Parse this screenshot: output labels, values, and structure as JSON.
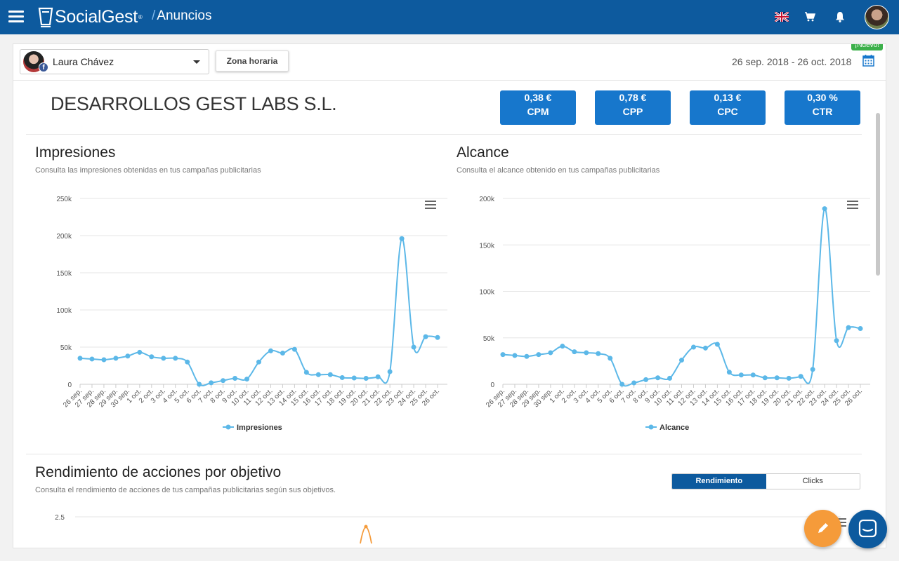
{
  "header": {
    "brand": "SocialGest",
    "brand_reg": "®",
    "breadcrumb": "Anuncios",
    "breadcrumb_sep": "/"
  },
  "toolbar": {
    "account_name": "Laura Chávez",
    "fb_badge": "f",
    "timezone_label": "Zona horaria",
    "new_badge": "¡Nuevo!",
    "date_range": "26 sep. 2018 - 26 oct. 2018"
  },
  "company": "DESARROLLOS GEST LABS S.L.",
  "metrics": [
    {
      "value": "0,38 €",
      "label": "CPM"
    },
    {
      "value": "0,78 €",
      "label": "CPP"
    },
    {
      "value": "0,13 €",
      "label": "CPC"
    },
    {
      "value": "0,30 %",
      "label": "CTR"
    }
  ],
  "sections": {
    "impresiones": {
      "title": "Impresiones",
      "subtitle": "Consulta las impresiones obtenidas en tus campañas publicitarias"
    },
    "alcance": {
      "title": "Alcance",
      "subtitle": "Consulta el alcance obtenido en tus campañas publicitarias"
    },
    "rendimiento": {
      "title": "Rendimiento de acciones por objetivo",
      "subtitle": "Consulta el rendimiento de acciones de tus campañas publicitarias según sus objetivos.",
      "tabs": [
        "Rendimiento",
        "Clicks"
      ]
    }
  },
  "colors": {
    "primary": "#0d5a9e",
    "metric": "#1777cc",
    "series": "#5cb8e8",
    "new": "#3cb04a",
    "fab": "#f59b3a"
  },
  "chart_data": [
    {
      "type": "line",
      "categories": [
        "26 sep.",
        "27 sep.",
        "28 sep.",
        "29 sep.",
        "30 sep.",
        "1 oct.",
        "2 oct.",
        "3 oct.",
        "4 oct.",
        "5 oct.",
        "6 oct.",
        "7 oct.",
        "8 oct.",
        "9 oct.",
        "10 oct.",
        "11 oct.",
        "12 oct.",
        "13 oct.",
        "14 oct.",
        "15 oct.",
        "16 oct.",
        "17 oct.",
        "18 oct.",
        "19 oct.",
        "20 oct.",
        "21 oct.",
        "22 oct.",
        "23 oct.",
        "24 oct.",
        "25 oct.",
        "26 oct."
      ],
      "series": [
        {
          "name": "Impresiones",
          "values": [
            35000,
            34000,
            33000,
            35000,
            38000,
            43000,
            37000,
            35000,
            35000,
            30000,
            0,
            2000,
            5000,
            8000,
            7000,
            30000,
            45000,
            42000,
            47000,
            16000,
            13000,
            13000,
            9000,
            8500,
            8000,
            10000,
            17000,
            196000,
            50000,
            64000,
            63000
          ]
        }
      ],
      "yticks": [
        "0",
        "50k",
        "100k",
        "150k",
        "200k",
        "250k"
      ],
      "ylim": [
        0,
        250000
      ]
    },
    {
      "type": "line",
      "categories": [
        "26 sep.",
        "27 sep.",
        "28 sep.",
        "29 sep.",
        "30 sep.",
        "1 oct.",
        "2 oct.",
        "3 oct.",
        "4 oct.",
        "5 oct.",
        "6 oct.",
        "7 oct.",
        "8 oct.",
        "9 oct.",
        "10 oct.",
        "11 oct.",
        "12 oct.",
        "13 oct.",
        "14 oct.",
        "15 oct.",
        "16 oct.",
        "17 oct.",
        "18 oct.",
        "19 oct.",
        "20 oct.",
        "21 oct.",
        "22 oct.",
        "23 oct.",
        "24 oct.",
        "25 oct.",
        "26 oct."
      ],
      "series": [
        {
          "name": "Alcance",
          "values": [
            32000,
            31000,
            30000,
            32000,
            34000,
            41000,
            35000,
            34000,
            33000,
            28000,
            0,
            1500,
            5000,
            7000,
            6500,
            26000,
            40000,
            39000,
            43000,
            13000,
            10000,
            10000,
            7000,
            7000,
            6500,
            8500,
            16000,
            189000,
            47000,
            61000,
            60000
          ]
        }
      ],
      "yticks": [
        "0",
        "50k",
        "100k",
        "150k",
        "200k"
      ],
      "ylim": [
        0,
        200000
      ]
    },
    {
      "type": "line",
      "yticks": [
        "2.5"
      ]
    }
  ]
}
